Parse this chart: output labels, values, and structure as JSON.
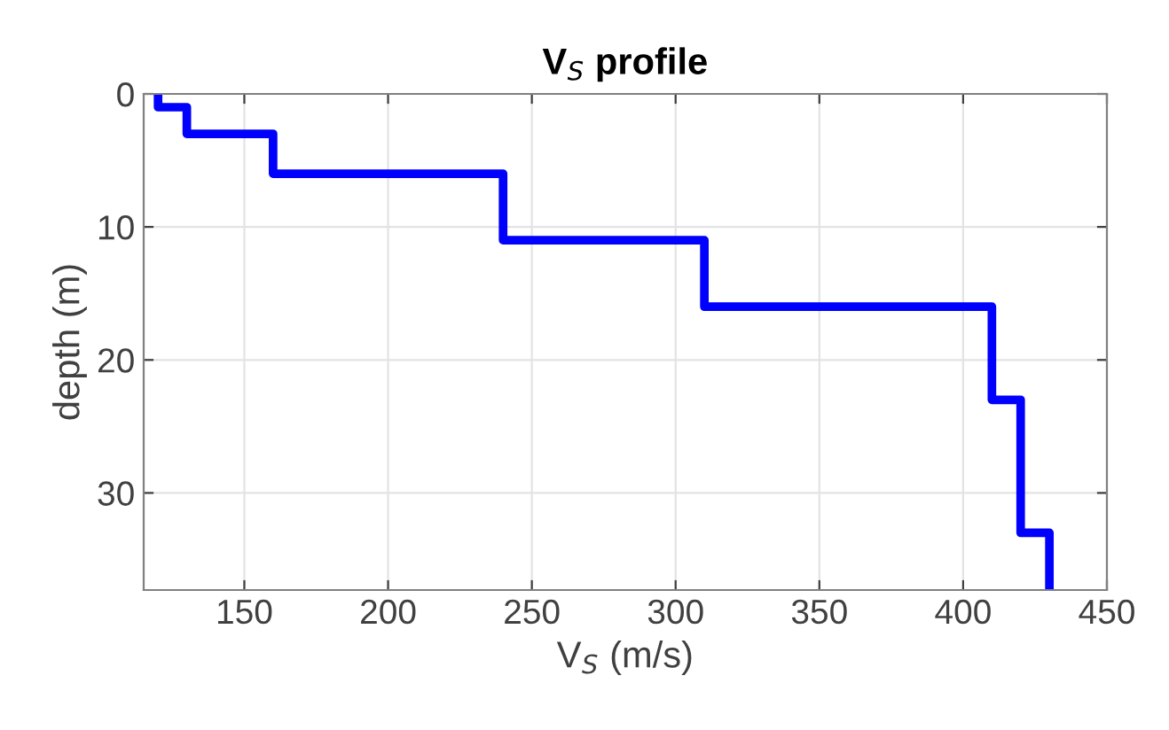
{
  "chart_data": {
    "type": "line",
    "title": "V$_{S}$ profile",
    "xlabel": "V$_{S}$ (m/s)",
    "ylabel": "depth (m)",
    "series": [
      {
        "color": "#0000ff",
        "x": [
          120,
          120,
          130,
          130,
          160,
          160,
          240,
          240,
          310,
          310,
          410,
          410,
          420,
          420,
          430,
          430
        ],
        "values": [
          0,
          1,
          1,
          3,
          3,
          6,
          6,
          11,
          11,
          16,
          16,
          23,
          23,
          33,
          33,
          37.3
        ]
      }
    ],
    "xlim": [
      115,
      450
    ],
    "xticks": [
      150,
      200,
      250,
      300,
      350,
      400,
      450
    ],
    "ylim": [
      37.3,
      0
    ],
    "yticks": [
      0,
      10,
      20,
      30
    ],
    "grid": true,
    "line_style": "solid",
    "marker": "none"
  }
}
